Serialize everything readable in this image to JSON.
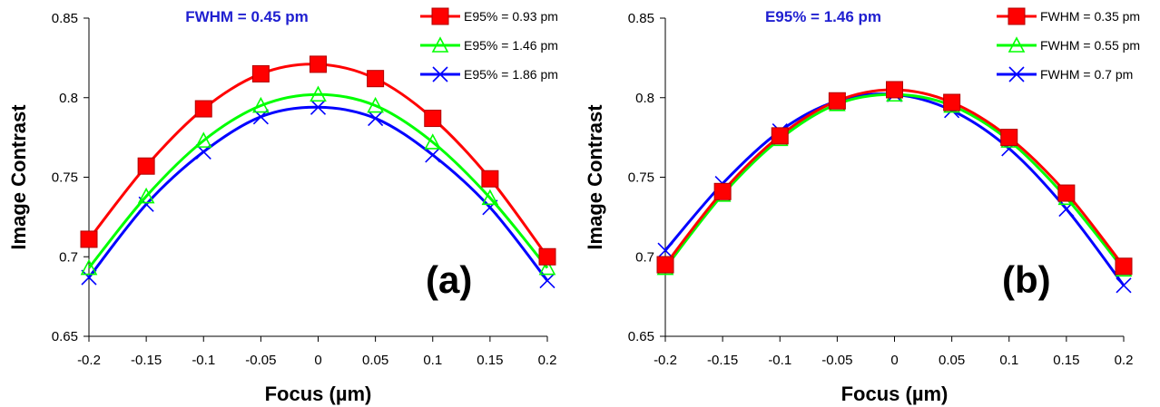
{
  "colors": {
    "red": "#ff0000",
    "green": "#00ff00",
    "blue": "#0000ff",
    "title_blue": "#1f1fd0"
  },
  "chart_data": [
    {
      "type": "line",
      "panel_label": "(a)",
      "title": "FWHM = 0.45 pm",
      "xlabel": "Focus (µm)",
      "ylabel": "Image Contrast",
      "x": [
        -0.2,
        -0.15,
        -0.1,
        -0.05,
        0,
        0.05,
        0.1,
        0.15,
        0.2
      ],
      "xtick_labels": [
        "-0.2",
        "-0.15",
        "-0.1",
        "-0.05",
        "0",
        "0.05",
        "0.1",
        "0.15",
        "0.2"
      ],
      "ytick_values": [
        0.65,
        0.7,
        0.75,
        0.8,
        0.85
      ],
      "ytick_labels": [
        "0.65",
        "0.7",
        "0.75",
        "0.8",
        "0.85"
      ],
      "xlim": [
        -0.2,
        0.2
      ],
      "ylim": [
        0.65,
        0.85
      ],
      "legend_position": "top-right",
      "series": [
        {
          "name": "E95% = 0.93 pm",
          "color": "#ff0000",
          "marker": "square",
          "values": [
            0.711,
            0.757,
            0.793,
            0.815,
            0.821,
            0.812,
            0.787,
            0.749,
            0.7
          ]
        },
        {
          "name": "E95% = 1.46 pm",
          "color": "#00ff00",
          "marker": "triangle",
          "values": [
            0.693,
            0.738,
            0.773,
            0.795,
            0.802,
            0.795,
            0.772,
            0.737,
            0.693
          ]
        },
        {
          "name": "E95% = 1.86 pm",
          "color": "#0000ff",
          "marker": "x",
          "values": [
            0.687,
            0.733,
            0.766,
            0.788,
            0.794,
            0.787,
            0.764,
            0.731,
            0.685
          ]
        }
      ]
    },
    {
      "type": "line",
      "panel_label": "(b)",
      "title": "E95% = 1.46 pm",
      "xlabel": "Focus (µm)",
      "ylabel": "Image Contrast",
      "x": [
        -0.2,
        -0.15,
        -0.1,
        -0.05,
        0,
        0.05,
        0.1,
        0.15,
        0.2
      ],
      "xtick_labels": [
        "-0.2",
        "-0.15",
        "-0.1",
        "-0.05",
        "0",
        "0.05",
        "0.1",
        "0.15",
        "0.2"
      ],
      "ytick_values": [
        0.65,
        0.7,
        0.75,
        0.8,
        0.85
      ],
      "ytick_labels": [
        "0.65",
        "0.7",
        "0.75",
        "0.8",
        "0.85"
      ],
      "xlim": [
        -0.2,
        0.2
      ],
      "ylim": [
        0.65,
        0.85
      ],
      "legend_position": "top-right",
      "series": [
        {
          "name": "FWHM = 0.35 pm",
          "color": "#ff0000",
          "marker": "square",
          "values": [
            0.695,
            0.741,
            0.776,
            0.798,
            0.805,
            0.797,
            0.775,
            0.74,
            0.694
          ]
        },
        {
          "name": "FWHM = 0.55 pm",
          "color": "#00ff00",
          "marker": "triangle",
          "values": [
            0.693,
            0.739,
            0.774,
            0.796,
            0.802,
            0.795,
            0.773,
            0.737,
            0.692
          ]
        },
        {
          "name": "FWHM = 0.7 pm",
          "color": "#0000ff",
          "marker": "x",
          "values": [
            0.704,
            0.746,
            0.779,
            0.798,
            0.802,
            0.792,
            0.768,
            0.73,
            0.682
          ]
        }
      ]
    }
  ]
}
